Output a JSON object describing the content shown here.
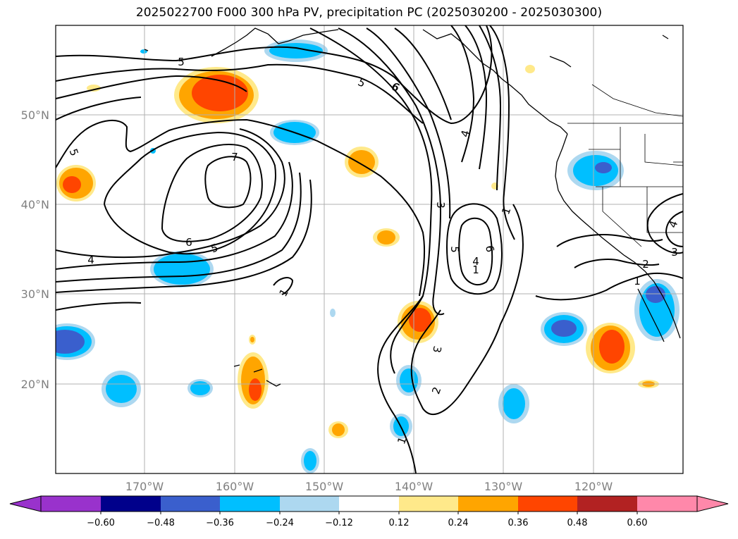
{
  "title": "2025022700 F000 300 hPa PV, precipitation PC (2025030200 - 2025030300)",
  "map": {
    "lat_labels": [
      "50°N",
      "40°N",
      "30°N",
      "20°N"
    ],
    "lon_labels": [
      "170°W",
      "160°W",
      "150°W",
      "140°W",
      "130°W",
      "120°W"
    ],
    "contour_labels": [
      "5",
      "5",
      "6",
      "7",
      "6",
      "5",
      "4",
      "1",
      "5",
      "6",
      "4",
      "3",
      "5",
      "6",
      "1",
      "4",
      "1",
      "3",
      "2",
      "1",
      "2",
      "3",
      "4",
      "1",
      "2",
      "3"
    ],
    "colors": {
      "neg_extend": "#9932cc",
      "neg_060": "#00008b",
      "neg_048": "#3a5fcd",
      "neg_036": "#00bfff",
      "neg_024": "#add8f0",
      "neutral": "#ffffff",
      "pos_012": "#ffe98a",
      "pos_024": "#ffa500",
      "pos_036": "#ff4500",
      "pos_048": "#b22222",
      "pos_060": "#ff88aa",
      "contour": "#000000",
      "coast": "#000000",
      "grid": "#aaaaaa"
    }
  },
  "colorbar": {
    "ticks": [
      "−0.60",
      "−0.48",
      "−0.36",
      "−0.24",
      "−0.12",
      "0.12",
      "0.24",
      "0.36",
      "0.48",
      "0.60"
    ],
    "colors": [
      "#9932cc",
      "#00008b",
      "#3a5fcd",
      "#00bfff",
      "#add8f0",
      "#ffffff",
      "#ffe98a",
      "#ffa500",
      "#ff4500",
      "#b22222",
      "#ff88aa"
    ]
  }
}
